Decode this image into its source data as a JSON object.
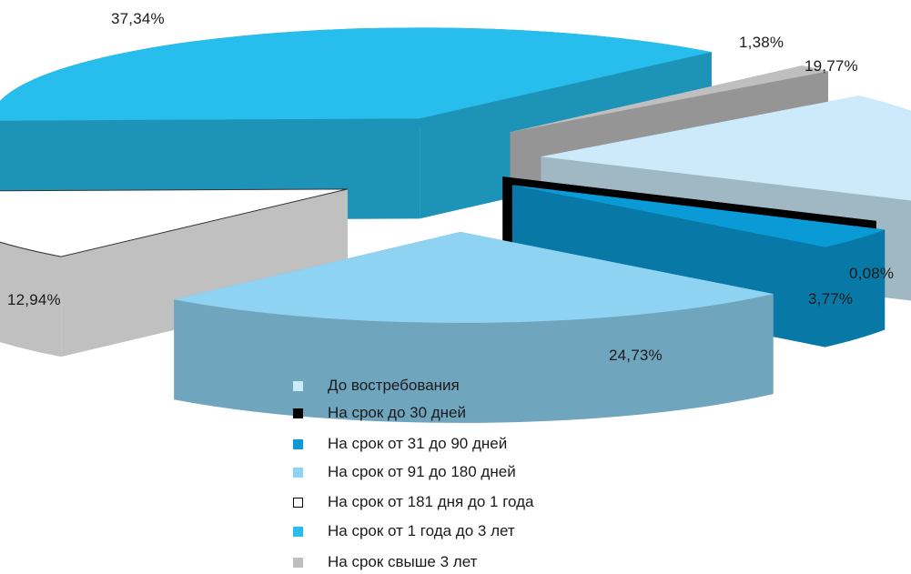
{
  "chart_data": {
    "type": "pie",
    "style": "3d exploded",
    "title": "",
    "categories": [
      "До востребования",
      "На срок до 30 дней",
      "На срок от 31 до 90 дней",
      "На срок от 91  до 180 дней",
      "На срок от 181 дня до 1 года",
      "На срок от 1 года до 3 лет",
      "На срок свыше 3 лет"
    ],
    "values": [
      19.77,
      0.08,
      3.77,
      24.73,
      12.94,
      37.34,
      1.38
    ],
    "value_labels": [
      "19,77%",
      "0,08%",
      "3,77%",
      "24,73%",
      "12,94%",
      "37,34%",
      "1,38%"
    ],
    "colors": [
      "#cdeafb",
      "#000000",
      "#0a9bd6",
      "#8fd3f3",
      "#ffffff",
      "#27bdec",
      "#bfbfbf"
    ],
    "legend_position": "bottom"
  }
}
